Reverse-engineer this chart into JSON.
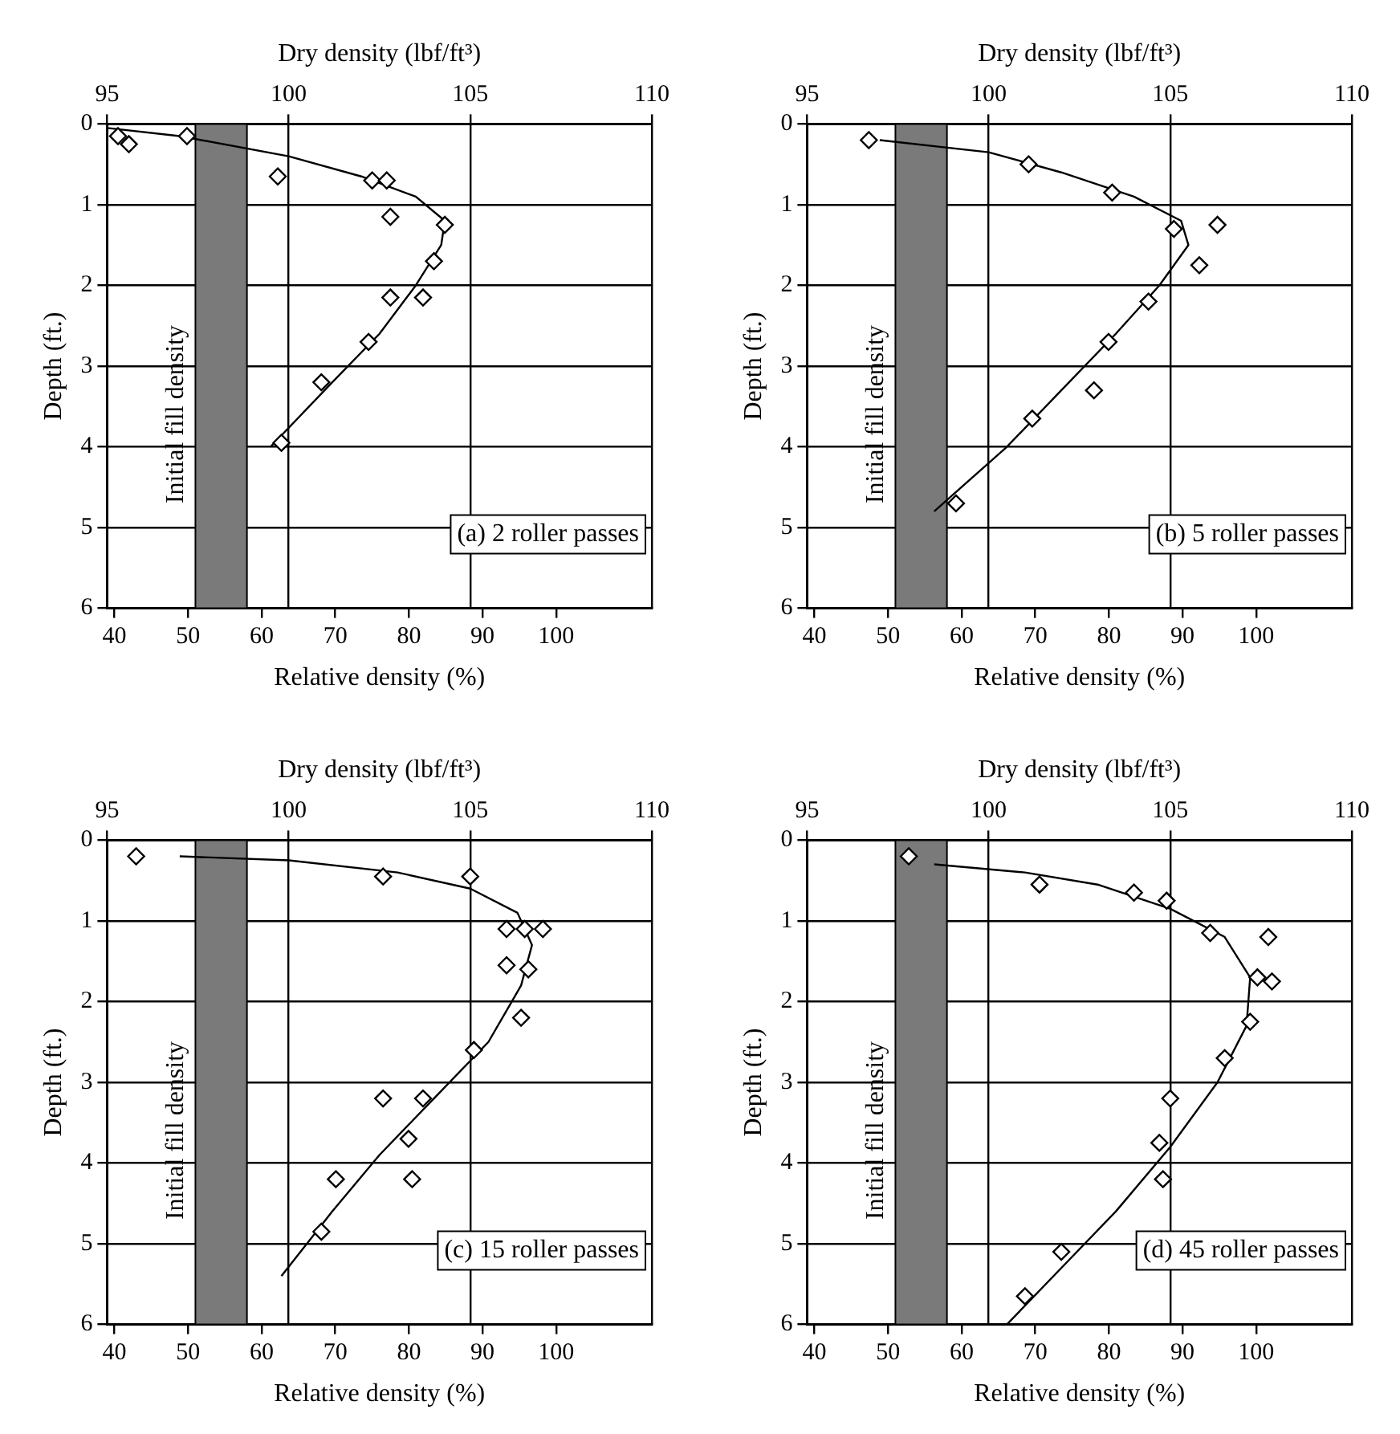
{
  "chart_data": [
    {
      "type": "scatter",
      "xlabel": "Relative density (%)",
      "x2label": "Dry density (lbf/ft³)",
      "ylabel": "Depth (ft.)",
      "annotations": [
        "(a) 2 roller passes"
      ],
      "xlim": [
        39,
        113
      ],
      "xticks": [
        40,
        50,
        60,
        70,
        80,
        90,
        100
      ],
      "x2lim": [
        95,
        110
      ],
      "x2ticks": [
        95,
        100,
        105,
        110
      ],
      "ylim": [
        6,
        0
      ],
      "yticks": [
        0,
        1,
        2,
        3,
        4,
        5,
        6
      ],
      "grid": true,
      "legend": false,
      "bands": [
        {
          "axis": "x",
          "from": 51,
          "to": 58,
          "label": "Initial fill density",
          "color": "#7a7a7a"
        }
      ],
      "series": [
        {
          "type": "scatter",
          "axis": "x2",
          "color": "#000000",
          "marker": "diamond",
          "x": [
            95.3,
            95.6,
            97.2,
            99.7,
            102.3,
            102.7,
            102.8,
            104.3,
            104.0,
            102.8,
            103.7,
            102.2,
            100.9,
            99.8
          ],
          "values": [
            0.15,
            0.25,
            0.15,
            0.65,
            0.7,
            0.7,
            1.15,
            1.25,
            1.7,
            2.15,
            2.15,
            2.7,
            3.2,
            3.95
          ]
        },
        {
          "type": "line",
          "axis": "x2",
          "color": "#000000",
          "marker": "none",
          "x": [
            95,
            97,
            100,
            102,
            103.5,
            104.3,
            104.2,
            103.5,
            102.5,
            101.2,
            99.5
          ],
          "values": [
            0.05,
            0.15,
            0.4,
            0.65,
            0.9,
            1.2,
            1.5,
            2.0,
            2.6,
            3.2,
            4.0
          ]
        }
      ]
    },
    {
      "type": "scatter",
      "xlabel": "Relative density (%)",
      "x2label": "Dry density (lbf/ft³)",
      "ylabel": "Depth (ft.)",
      "annotations": [
        "(b) 5 roller passes"
      ],
      "xlim": [
        39,
        113
      ],
      "xticks": [
        40,
        50,
        60,
        70,
        80,
        90,
        100
      ],
      "x2lim": [
        95,
        110
      ],
      "x2ticks": [
        95,
        100,
        105,
        110
      ],
      "ylim": [
        6,
        0
      ],
      "yticks": [
        0,
        1,
        2,
        3,
        4,
        5,
        6
      ],
      "grid": true,
      "legend": false,
      "bands": [
        {
          "axis": "x",
          "from": 51,
          "to": 58,
          "label": "Initial fill density",
          "color": "#7a7a7a"
        }
      ],
      "series": [
        {
          "type": "scatter",
          "axis": "x2",
          "color": "#000000",
          "marker": "diamond",
          "x": [
            96.7,
            101.1,
            103.4,
            105.1,
            106.3,
            105.8,
            104.4,
            103.3,
            102.9,
            101.2,
            99.1
          ],
          "values": [
            0.2,
            0.5,
            0.85,
            1.3,
            1.25,
            1.75,
            2.2,
            2.7,
            3.3,
            3.65,
            4.7
          ]
        },
        {
          "type": "line",
          "axis": "x2",
          "color": "#000000",
          "marker": "none",
          "x": [
            97,
            100,
            102,
            104,
            105.3,
            105.5,
            104.7,
            103.5,
            102,
            100.5,
            98.5
          ],
          "values": [
            0.2,
            0.35,
            0.6,
            0.9,
            1.2,
            1.5,
            2.0,
            2.6,
            3.3,
            4.0,
            4.8
          ]
        }
      ]
    },
    {
      "type": "scatter",
      "xlabel": "Relative density (%)",
      "x2label": "Dry density (lbf/ft³)",
      "ylabel": "Depth (ft.)",
      "annotations": [
        "(c) 15 roller passes"
      ],
      "xlim": [
        39,
        113
      ],
      "xticks": [
        40,
        50,
        60,
        70,
        80,
        90,
        100
      ],
      "x2lim": [
        95,
        110
      ],
      "x2ticks": [
        95,
        100,
        105,
        110
      ],
      "ylim": [
        6,
        0
      ],
      "yticks": [
        0,
        1,
        2,
        3,
        4,
        5,
        6
      ],
      "grid": true,
      "legend": false,
      "bands": [
        {
          "axis": "x",
          "from": 51,
          "to": 58,
          "label": "Initial fill density",
          "color": "#7a7a7a"
        }
      ],
      "series": [
        {
          "type": "scatter",
          "axis": "x2",
          "color": "#000000",
          "marker": "diamond",
          "x": [
            95.8,
            102.6,
            105.0,
            106.0,
            106.5,
            107.0,
            106.0,
            106.6,
            106.4,
            105.1,
            102.6,
            103.7,
            103.3,
            103.4,
            101.3,
            100.9
          ],
          "values": [
            0.2,
            0.45,
            0.45,
            1.1,
            1.1,
            1.1,
            1.55,
            1.6,
            2.2,
            2.6,
            3.2,
            3.2,
            3.7,
            4.2,
            4.2,
            4.85
          ]
        },
        {
          "type": "line",
          "axis": "x2",
          "color": "#000000",
          "marker": "none",
          "x": [
            97,
            100,
            103,
            105,
            106.3,
            106.7,
            106.4,
            105.5,
            104,
            102.5,
            101.2,
            99.8
          ],
          "values": [
            0.2,
            0.25,
            0.4,
            0.6,
            0.9,
            1.3,
            1.8,
            2.5,
            3.2,
            3.9,
            4.6,
            5.4
          ]
        }
      ]
    },
    {
      "type": "scatter",
      "xlabel": "Relative density (%)",
      "x2label": "Dry density (lbf/ft³)",
      "ylabel": "Depth (ft.)",
      "annotations": [
        "(d) 45 roller passes"
      ],
      "xlim": [
        39,
        113
      ],
      "xticks": [
        40,
        50,
        60,
        70,
        80,
        90,
        100
      ],
      "x2lim": [
        95,
        110
      ],
      "x2ticks": [
        95,
        100,
        105,
        110
      ],
      "ylim": [
        6,
        0
      ],
      "yticks": [
        0,
        1,
        2,
        3,
        4,
        5,
        6
      ],
      "grid": true,
      "legend": false,
      "bands": [
        {
          "axis": "x",
          "from": 51,
          "to": 58,
          "label": "Initial fill density",
          "color": "#7a7a7a"
        }
      ],
      "series": [
        {
          "type": "scatter",
          "axis": "x2",
          "color": "#000000",
          "marker": "diamond",
          "x": [
            97.8,
            101.4,
            104.0,
            104.9,
            106.1,
            107.7,
            107.4,
            107.8,
            107.2,
            106.5,
            105.0,
            104.7,
            104.8,
            102.0,
            101.0
          ],
          "values": [
            0.2,
            0.55,
            0.65,
            0.75,
            1.15,
            1.2,
            1.7,
            1.75,
            2.25,
            2.7,
            3.2,
            3.75,
            4.2,
            5.1,
            5.65
          ]
        },
        {
          "type": "line",
          "axis": "x2",
          "color": "#000000",
          "marker": "none",
          "x": [
            98.5,
            101,
            103,
            105,
            106.5,
            107.2,
            107.1,
            106.3,
            105,
            103.5,
            102,
            100.5
          ],
          "values": [
            0.3,
            0.4,
            0.55,
            0.85,
            1.2,
            1.7,
            2.3,
            3.0,
            3.8,
            4.6,
            5.3,
            6.0
          ]
        }
      ]
    }
  ]
}
